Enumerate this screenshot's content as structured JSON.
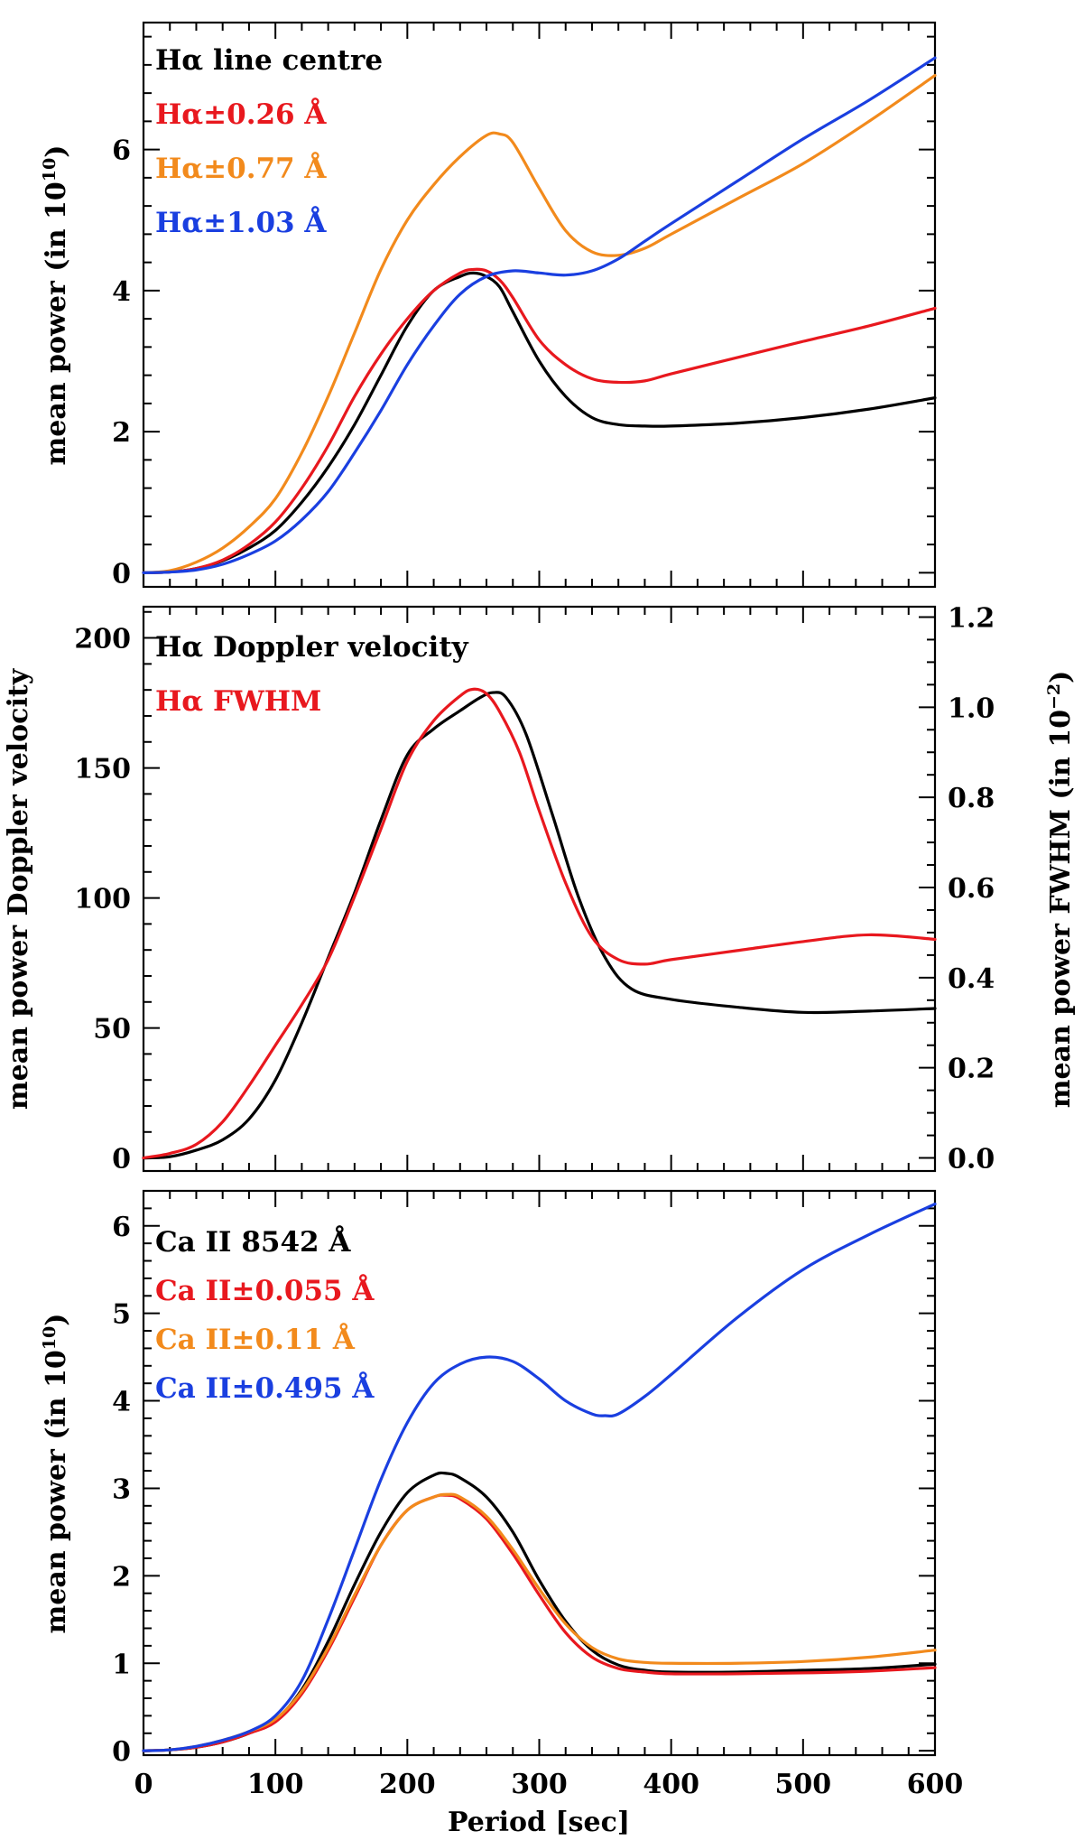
{
  "chart_data": [
    {
      "type": "line",
      "panel": "top",
      "title": "",
      "xlabel": "",
      "ylabel": "mean power (in 10^10)",
      "ylabel_base": "mean power (in 10",
      "ylabel_exp": "10",
      "ylabel_close": ")",
      "xlim": [
        0,
        600
      ],
      "ylim": [
        -0.2,
        7.8
      ],
      "xticks": [
        "0",
        "100",
        "200",
        "300",
        "400",
        "500",
        "600"
      ],
      "yticks": [
        "0",
        "2",
        "4",
        "6"
      ],
      "series": [
        {
          "name": "Hα line centre",
          "color": "#000000",
          "x": [
            0,
            20,
            40,
            60,
            80,
            100,
            120,
            140,
            160,
            180,
            200,
            220,
            240,
            250,
            260,
            270,
            280,
            300,
            320,
            340,
            360,
            380,
            400,
            450,
            500,
            550,
            600
          ],
          "values": [
            0,
            0.01,
            0.06,
            0.17,
            0.35,
            0.6,
            1.0,
            1.5,
            2.1,
            2.8,
            3.5,
            4.0,
            4.2,
            4.25,
            4.2,
            4.05,
            3.7,
            3.0,
            2.5,
            2.2,
            2.1,
            2.08,
            2.08,
            2.12,
            2.2,
            2.32,
            2.48
          ]
        },
        {
          "name": "Hα±0.26 Å",
          "color": "#e8181e",
          "x": [
            0,
            20,
            40,
            60,
            80,
            100,
            120,
            140,
            160,
            180,
            200,
            220,
            240,
            250,
            260,
            270,
            280,
            300,
            320,
            340,
            360,
            380,
            400,
            450,
            500,
            550,
            600
          ],
          "values": [
            0,
            0.01,
            0.06,
            0.18,
            0.4,
            0.72,
            1.2,
            1.8,
            2.5,
            3.1,
            3.6,
            4.0,
            4.25,
            4.3,
            4.28,
            4.15,
            3.9,
            3.3,
            2.95,
            2.75,
            2.7,
            2.72,
            2.82,
            3.05,
            3.28,
            3.5,
            3.75
          ]
        },
        {
          "name": "Hα±0.77 Å",
          "color": "#f28a1c",
          "x": [
            0,
            20,
            40,
            60,
            80,
            100,
            120,
            140,
            160,
            180,
            200,
            220,
            240,
            260,
            270,
            280,
            300,
            320,
            340,
            360,
            380,
            400,
            450,
            500,
            550,
            600
          ],
          "values": [
            0,
            0.03,
            0.15,
            0.35,
            0.65,
            1.05,
            1.7,
            2.5,
            3.4,
            4.3,
            5.0,
            5.5,
            5.9,
            6.2,
            6.22,
            6.1,
            5.45,
            4.85,
            4.55,
            4.5,
            4.6,
            4.8,
            5.3,
            5.8,
            6.4,
            7.05
          ]
        },
        {
          "name": "Hα±1.03 Å",
          "color": "#1a3fe0",
          "x": [
            0,
            20,
            40,
            60,
            80,
            100,
            120,
            140,
            160,
            180,
            200,
            220,
            240,
            260,
            280,
            300,
            320,
            340,
            360,
            380,
            400,
            450,
            500,
            550,
            600
          ],
          "values": [
            0,
            0.01,
            0.04,
            0.12,
            0.26,
            0.45,
            0.75,
            1.15,
            1.7,
            2.3,
            2.95,
            3.5,
            3.95,
            4.2,
            4.28,
            4.25,
            4.22,
            4.28,
            4.45,
            4.7,
            4.95,
            5.55,
            6.15,
            6.7,
            7.3
          ]
        }
      ],
      "legend": [
        "Hα line centre",
        "Hα±0.26 Å",
        "Hα±0.77 Å",
        "Hα±1.03 Å"
      ],
      "legend_position": "top-left"
    },
    {
      "type": "line",
      "panel": "middle",
      "title": "",
      "xlabel": "",
      "ylabel": "mean power Doppler velocity",
      "ylabel_right": "mean power FWHM (in 10^−2)",
      "ylabel_right_base": "mean power FWHM (in 10",
      "ylabel_right_exp": "−2",
      "ylabel_right_close": ")",
      "xlim": [
        0,
        600
      ],
      "ylim": [
        -5,
        212
      ],
      "ylim_right": [
        -0.029,
        1.223
      ],
      "xticks": [
        "0",
        "100",
        "200",
        "300",
        "400",
        "500",
        "600"
      ],
      "yticks": [
        "0",
        "50",
        "100",
        "150",
        "200"
      ],
      "yticks_right": [
        "0.0",
        "0.2",
        "0.4",
        "0.6",
        "0.8",
        "1.0",
        "1.2"
      ],
      "series": [
        {
          "name": "Hα Doppler velocity",
          "color": "#000000",
          "axis": "left",
          "x": [
            0,
            20,
            40,
            60,
            80,
            100,
            120,
            140,
            160,
            180,
            200,
            220,
            240,
            255,
            265,
            275,
            290,
            310,
            330,
            350,
            370,
            400,
            450,
            500,
            550,
            600
          ],
          "values": [
            0,
            0.5,
            3,
            7,
            15,
            30,
            52,
            77,
            102,
            130,
            155,
            165,
            172,
            177,
            179,
            177,
            163,
            132,
            100,
            77,
            65,
            61,
            58,
            56,
            56.5,
            57.5
          ]
        },
        {
          "name": "Hα FWHM",
          "color": "#e8181e",
          "axis": "right",
          "x": [
            0,
            20,
            40,
            60,
            80,
            100,
            120,
            140,
            160,
            180,
            200,
            220,
            240,
            250,
            260,
            270,
            285,
            300,
            320,
            340,
            360,
            380,
            400,
            450,
            500,
            550,
            600
          ],
          "values": [
            0,
            0.01,
            0.03,
            0.08,
            0.16,
            0.25,
            0.34,
            0.44,
            0.58,
            0.73,
            0.88,
            0.97,
            1.025,
            1.04,
            1.03,
            0.99,
            0.9,
            0.77,
            0.61,
            0.49,
            0.44,
            0.43,
            0.44,
            0.46,
            0.48,
            0.495,
            0.485
          ]
        }
      ],
      "legend": [
        "Hα Doppler velocity",
        "Hα FWHM"
      ],
      "legend_position": "top-left"
    },
    {
      "type": "line",
      "panel": "bottom",
      "title": "",
      "xlabel": "Period [sec]",
      "ylabel": "mean power (in 10^10)",
      "ylabel_base": "mean power (in 10",
      "ylabel_exp": "10",
      "ylabel_close": ")",
      "xlim": [
        0,
        600
      ],
      "ylim": [
        -0.05,
        6.4
      ],
      "xticks": [
        "0",
        "100",
        "200",
        "300",
        "400",
        "500",
        "600"
      ],
      "yticks": [
        "0",
        "1",
        "2",
        "3",
        "4",
        "5",
        "6"
      ],
      "series": [
        {
          "name": "Ca II 8542 Å",
          "color": "#000000",
          "x": [
            0,
            20,
            40,
            60,
            80,
            100,
            120,
            140,
            160,
            180,
            200,
            220,
            230,
            240,
            260,
            280,
            300,
            320,
            340,
            360,
            380,
            400,
            450,
            500,
            550,
            600
          ],
          "values": [
            0,
            0.01,
            0.04,
            0.1,
            0.2,
            0.35,
            0.7,
            1.25,
            1.9,
            2.5,
            2.95,
            3.15,
            3.17,
            3.12,
            2.9,
            2.5,
            1.95,
            1.48,
            1.15,
            0.98,
            0.92,
            0.9,
            0.9,
            0.92,
            0.94,
            0.99
          ]
        },
        {
          "name": "Ca II±0.055 Å",
          "color": "#e8181e",
          "x": [
            0,
            20,
            40,
            60,
            80,
            100,
            120,
            140,
            160,
            180,
            200,
            220,
            230,
            240,
            260,
            280,
            300,
            320,
            340,
            360,
            380,
            400,
            450,
            500,
            550,
            600
          ],
          "values": [
            0,
            0.01,
            0.04,
            0.1,
            0.2,
            0.33,
            0.65,
            1.15,
            1.75,
            2.35,
            2.75,
            2.9,
            2.92,
            2.88,
            2.65,
            2.25,
            1.78,
            1.35,
            1.07,
            0.94,
            0.9,
            0.88,
            0.88,
            0.89,
            0.91,
            0.95
          ]
        },
        {
          "name": "Ca II±0.11 Å",
          "color": "#f28a1c",
          "x": [
            0,
            20,
            40,
            60,
            80,
            100,
            120,
            140,
            160,
            180,
            200,
            220,
            230,
            240,
            260,
            280,
            300,
            320,
            340,
            360,
            380,
            400,
            450,
            500,
            550,
            600
          ],
          "values": [
            0,
            0.01,
            0.05,
            0.12,
            0.22,
            0.36,
            0.68,
            1.18,
            1.78,
            2.35,
            2.75,
            2.9,
            2.93,
            2.9,
            2.68,
            2.3,
            1.85,
            1.45,
            1.18,
            1.05,
            1.01,
            1.0,
            1.0,
            1.02,
            1.07,
            1.15
          ]
        },
        {
          "name": "Ca II±0.495 Å",
          "color": "#1a3fe0",
          "x": [
            0,
            20,
            40,
            60,
            80,
            100,
            120,
            140,
            160,
            180,
            200,
            220,
            240,
            260,
            280,
            300,
            320,
            340,
            350,
            360,
            380,
            400,
            450,
            500,
            550,
            600
          ],
          "values": [
            0,
            0.01,
            0.05,
            0.12,
            0.22,
            0.4,
            0.8,
            1.5,
            2.3,
            3.1,
            3.75,
            4.2,
            4.42,
            4.5,
            4.45,
            4.25,
            4.0,
            3.85,
            3.83,
            3.85,
            4.05,
            4.3,
            4.95,
            5.5,
            5.9,
            6.25
          ]
        }
      ],
      "legend": [
        "Ca II 8542 Å",
        "Ca II±0.055 Å",
        "Ca II±0.11 Å",
        "Ca II±0.495 Å"
      ],
      "legend_position": "top-left"
    }
  ]
}
